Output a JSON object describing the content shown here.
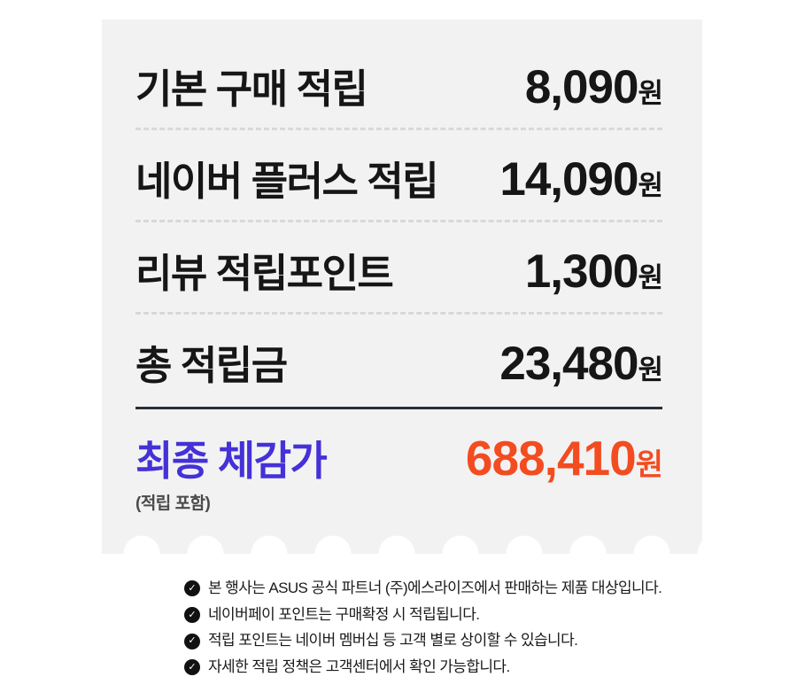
{
  "colors": {
    "page_bg": "#ffffff",
    "card_bg": "#f2f2f2",
    "text": "#161616",
    "divider_dashed": "#d8d8d8",
    "divider_solid": "#2a3038",
    "final_label_blue": "#4431d8",
    "final_value_orange": "#f24c20",
    "note_gray": "#4a4a4a",
    "footnote_icon_bg": "#111111",
    "footnote_icon_check": "#ffffff"
  },
  "card": {
    "rows": [
      {
        "label": "기본 구매 적립",
        "amount": "8,090",
        "unit": "원"
      },
      {
        "label": "네이버 플러스 적립",
        "amount": "14,090",
        "unit": "원"
      },
      {
        "label": "리뷰 적립포인트",
        "amount": "1,300",
        "unit": "원"
      },
      {
        "label": "총 적립금",
        "amount": "23,480",
        "unit": "원"
      }
    ],
    "final": {
      "label": "최종 체감가",
      "amount": "688,410",
      "unit": "원",
      "note": "(적립 포함)"
    }
  },
  "footnotes": {
    "check_glyph": "✓",
    "items": [
      "본 행사는 ASUS 공식 파트너 (주)에스라이즈에서 판매하는 제품 대상입니다.",
      "네이버페이 포인트는 구매확정 시 적립됩니다.",
      "적립 포인트는 네이버 멤버십 등 고객 별로 상이할 수 있습니다.",
      "자세한 적립 정책은 고객센터에서 확인 가능합니다."
    ]
  }
}
